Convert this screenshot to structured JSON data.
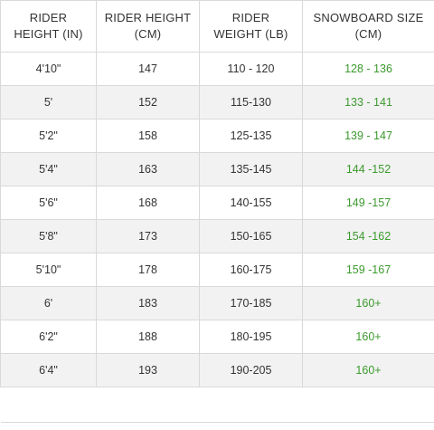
{
  "headers": [
    {
      "line1": "RIDER",
      "line2": "HEIGHT (IN)"
    },
    {
      "line1": "RIDER HEIGHT",
      "line2": "(CM)"
    },
    {
      "line1": "RIDER",
      "line2": "WEIGHT (LB)"
    },
    {
      "line1": "SNOWBOARD SIZE",
      "line2": "(CM)"
    }
  ],
  "rows": [
    {
      "height_in": "4'10\"",
      "height_cm": "147",
      "weight_lb": "110 - 120",
      "board_cm": "128 - 136"
    },
    {
      "height_in": "5'",
      "height_cm": "152",
      "weight_lb": "115-130",
      "board_cm": "133 - 141"
    },
    {
      "height_in": "5'2\"",
      "height_cm": "158",
      "weight_lb": "125-135",
      "board_cm": "139 - 147"
    },
    {
      "height_in": "5'4\"",
      "height_cm": "163",
      "weight_lb": "135-145",
      "board_cm": "144 -152"
    },
    {
      "height_in": "5'6\"",
      "height_cm": "168",
      "weight_lb": "140-155",
      "board_cm": "149 -157"
    },
    {
      "height_in": "5'8\"",
      "height_cm": "173",
      "weight_lb": "150-165",
      "board_cm": "154 -162"
    },
    {
      "height_in": "5'10\"",
      "height_cm": "178",
      "weight_lb": "160-175",
      "board_cm": "159 -167"
    },
    {
      "height_in": "6'",
      "height_cm": "183",
      "weight_lb": "170-185",
      "board_cm": "160+"
    },
    {
      "height_in": "6'2\"",
      "height_cm": "188",
      "weight_lb": "180-195",
      "board_cm": "160+"
    },
    {
      "height_in": "6'4\"",
      "height_cm": "193",
      "weight_lb": "190-205",
      "board_cm": "160+"
    }
  ],
  "colors": {
    "text": "#333333",
    "board_size_text": "#3c9a2e",
    "stripe": "#f2f2f2",
    "border": "#d9d9d9"
  }
}
